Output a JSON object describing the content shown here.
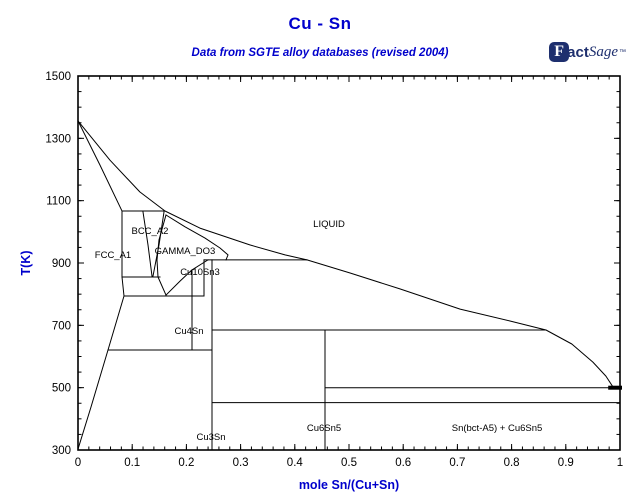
{
  "header": {
    "title": "Cu - Sn",
    "subtitle": "Data from SGTE alloy databases (revised 2004)",
    "logo": {
      "f": "F",
      "act": "act",
      "sage": "Sage",
      "tm": "™"
    }
  },
  "colors": {
    "accent_blue": "#0000CC",
    "logo_navy": "#1E2F6E",
    "line_black": "#000000"
  },
  "chart_data": {
    "type": "line",
    "title": "Cu - Sn phase diagram",
    "xlabel": "mole Sn/(Cu+Sn)",
    "ylabel": "T(K)",
    "xlim": [
      0,
      1
    ],
    "ylim": [
      300,
      1500
    ],
    "grid": false,
    "x_ticks": {
      "major": [
        0,
        0.1,
        0.2,
        0.3,
        0.4,
        0.5,
        0.6,
        0.7,
        0.8,
        0.9,
        1
      ],
      "labels": [
        "0",
        "0.1",
        "0.2",
        "0.3",
        "0.4",
        "0.5",
        "0.6",
        "0.7",
        "0.8",
        "0.9",
        "1"
      ],
      "minor_step": 0.02
    },
    "y_ticks": {
      "major": [
        300,
        500,
        700,
        900,
        1100,
        1300,
        1500
      ],
      "labels": [
        "300",
        "500",
        "700",
        "900",
        "1100",
        "1300",
        "1500"
      ],
      "minor_step": 50
    },
    "boundaries": [
      {
        "name": "liquidus",
        "points": [
          [
            0,
            1356
          ],
          [
            0.059,
            1230
          ],
          [
            0.114,
            1128
          ],
          [
            0.1605,
            1067
          ],
          [
            0.225,
            1012
          ],
          [
            0.317,
            958
          ],
          [
            0.382,
            926
          ],
          [
            0.4225,
            910
          ],
          [
            0.502,
            868
          ],
          [
            0.594,
            817
          ],
          [
            0.705,
            752
          ],
          [
            0.797,
            714
          ],
          [
            0.8635,
            685
          ],
          [
            0.911,
            640
          ],
          [
            0.95,
            582
          ],
          [
            0.974,
            537
          ],
          [
            0.987,
            502
          ]
        ]
      },
      {
        "name": "solidus-cu",
        "points": [
          [
            0,
            1356
          ],
          [
            0.0406,
            1214
          ],
          [
            0.0812,
            1067
          ]
        ]
      },
      {
        "name": "fcc-boundary",
        "points": [
          [
            0.0812,
            1067
          ],
          [
            0.0812,
            855
          ],
          [
            0.0849,
            794
          ],
          [
            0.0554,
            621
          ],
          [
            0.024,
            438
          ],
          [
            0.0,
            303
          ]
        ]
      },
      {
        "name": "peritectic-1067K",
        "points": [
          [
            0.0812,
            1067
          ],
          [
            0.1605,
            1067
          ]
        ]
      },
      {
        "name": "bcc-left",
        "points": [
          [
            0.1199,
            1064
          ],
          [
            0.1292,
            958
          ],
          [
            0.1365,
            858
          ]
        ]
      },
      {
        "name": "bcc-right",
        "points": [
          [
            0.1587,
            1064
          ],
          [
            0.1494,
            958
          ],
          [
            0.1384,
            858
          ]
        ]
      },
      {
        "name": "eutectoid-855K",
        "points": [
          [
            0.0812,
            855
          ],
          [
            0.1513,
            855
          ]
        ]
      },
      {
        "name": "gamma-left",
        "points": [
          [
            0.1624,
            1054
          ],
          [
            0.1494,
            974
          ],
          [
            0.1457,
            910
          ],
          [
            0.1476,
            855
          ],
          [
            0.1624,
            797
          ]
        ]
      },
      {
        "name": "gamma-right",
        "points": [
          [
            0.1624,
            1054
          ],
          [
            0.1974,
            1016
          ],
          [
            0.2343,
            980
          ],
          [
            0.262,
            948
          ],
          [
            0.2768,
            926
          ],
          [
            0.2731,
            910
          ]
        ]
      },
      {
        "name": "gamma-lower",
        "points": [
          [
            0.1624,
            797
          ],
          [
            0.1882,
            842
          ],
          [
            0.2103,
            878
          ],
          [
            0.2306,
            900
          ],
          [
            0.2399,
            910
          ]
        ]
      },
      {
        "name": "eutectoid-794K",
        "points": [
          [
            0.0849,
            794
          ],
          [
            0.2325,
            794
          ]
        ]
      },
      {
        "name": "peritectic-910K",
        "points": [
          [
            0.2325,
            910
          ],
          [
            0.4225,
            910
          ]
        ]
      },
      {
        "name": "cu10sn3-line",
        "points": [
          [
            0.2325,
            910
          ],
          [
            0.2325,
            794
          ]
        ]
      },
      {
        "name": "cu4sn-line",
        "points": [
          [
            0.2103,
            878
          ],
          [
            0.2103,
            621
          ]
        ]
      },
      {
        "name": "eutectoid-621K",
        "points": [
          [
            0.0554,
            621
          ],
          [
            0.2472,
            621
          ]
        ]
      },
      {
        "name": "cu3sn-line",
        "points": [
          [
            0.2472,
            910
          ],
          [
            0.2472,
            300
          ]
        ]
      },
      {
        "name": "peritectic-685K",
        "points": [
          [
            0.2472,
            685
          ],
          [
            0.8635,
            685
          ]
        ]
      },
      {
        "name": "cu6sn5-line",
        "points": [
          [
            0.4557,
            685
          ],
          [
            0.4557,
            300
          ]
        ]
      },
      {
        "name": "eutectic-500K",
        "points": [
          [
            0.4557,
            500
          ],
          [
            1.0,
            500
          ]
        ]
      },
      {
        "name": "transition-452K",
        "points": [
          [
            0.2472,
            452
          ],
          [
            1.0,
            452
          ]
        ]
      },
      {
        "name": "eutectic-point-segment",
        "points": [
          [
            0.982,
            500
          ],
          [
            1.0,
            500
          ]
        ],
        "width": 4
      }
    ],
    "region_labels": [
      {
        "text": "FCC_A1",
        "x": 0.0646,
        "T": 926
      },
      {
        "text": "BCC_A2",
        "x": 0.1328,
        "T": 1003
      },
      {
        "text": "GAMMA_DO3",
        "x": 0.1974,
        "T": 938
      },
      {
        "text": "Cu10Sn3",
        "x": 0.2251,
        "T": 871
      },
      {
        "text": "Cu4Sn",
        "x": 0.2048,
        "T": 682
      },
      {
        "text": "Cu3Sn",
        "x": 0.2454,
        "T": 342
      },
      {
        "text": "Cu6Sn5",
        "x": 0.4539,
        "T": 371
      },
      {
        "text": "Sn(bct-A5) + Cu6Sn5",
        "x": 0.7731,
        "T": 371
      },
      {
        "text": "LIQUID",
        "x": 0.4631,
        "T": 1025
      }
    ]
  }
}
